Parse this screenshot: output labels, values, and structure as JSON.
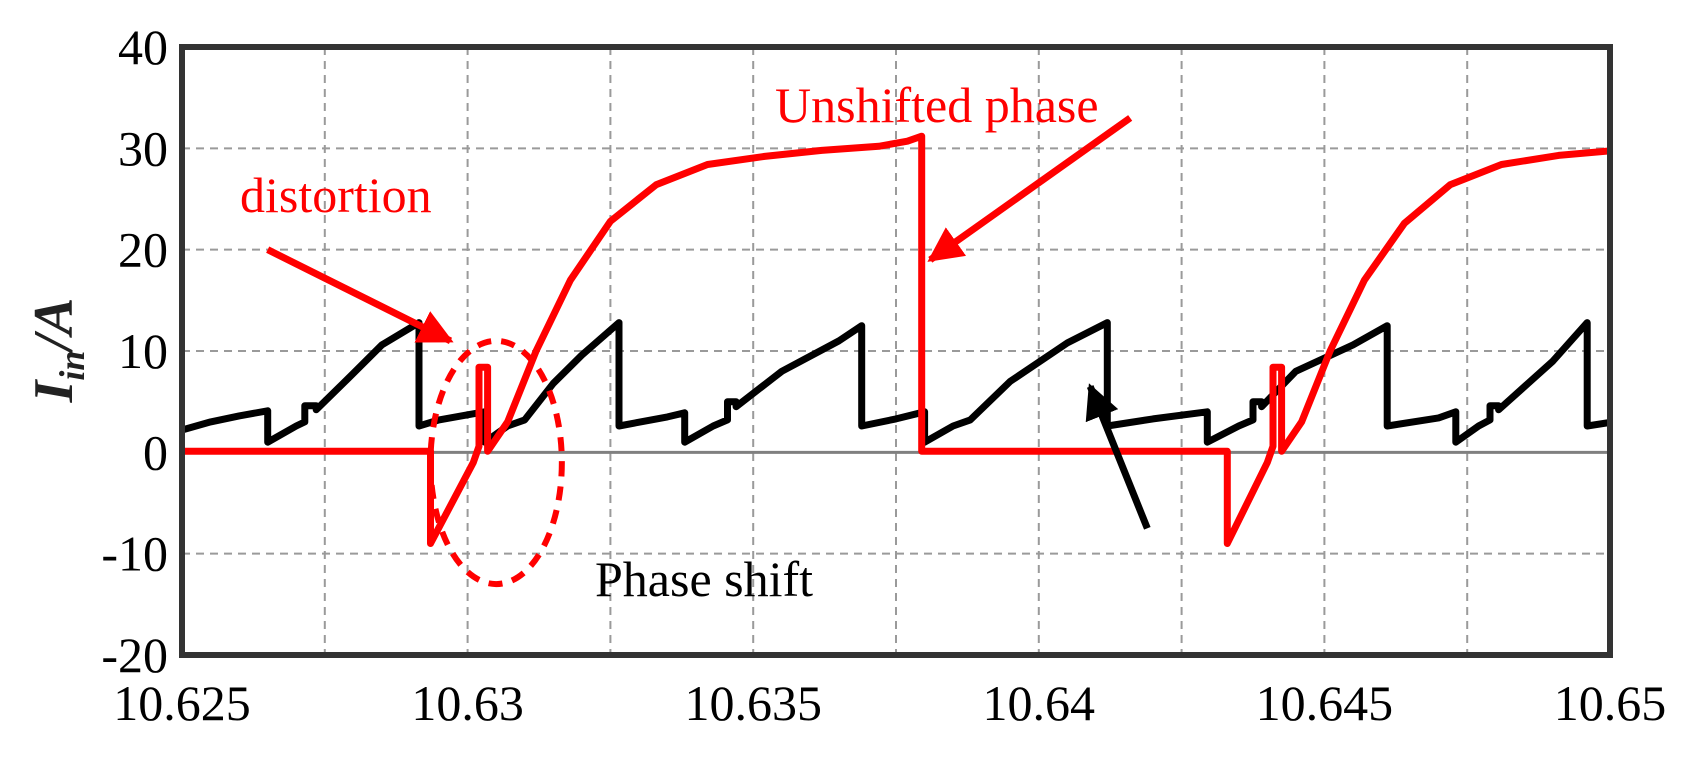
{
  "chart_data": {
    "type": "line",
    "title": "",
    "xlabel": "",
    "ylabel": "I_in/A",
    "ylabel_parts": {
      "symbol": "I",
      "subscript": "in",
      "unit": "/A"
    },
    "xlim": [
      10.625,
      10.65
    ],
    "ylim": [
      -20,
      40
    ],
    "x_ticks": [
      10.625,
      10.63,
      10.635,
      10.64,
      10.645,
      10.65
    ],
    "x_tick_labels": [
      "10.625",
      "10.63",
      "10.635",
      "10.64",
      "10.645",
      "10.65"
    ],
    "y_ticks": [
      -20,
      -10,
      0,
      10,
      20,
      30,
      40
    ],
    "y_tick_labels": [
      "-20",
      "-10",
      "0",
      "10",
      "20",
      "30",
      "40"
    ],
    "grid": true,
    "legend": "none",
    "colors": {
      "unshifted": "#ff0000",
      "shifted": "#000000",
      "zero_line": "#808080",
      "grid": "#9a9a9a"
    },
    "series": [
      {
        "color": "#000000",
        "points": [
          [
            10.625,
            2.2
          ],
          [
            10.6255,
            3.0
          ],
          [
            10.626,
            3.6
          ],
          [
            10.6265,
            4.1
          ],
          [
            10.6265,
            1.0
          ],
          [
            10.627,
            2.6
          ],
          [
            10.62715,
            3.0
          ],
          [
            10.62715,
            4.6
          ],
          [
            10.62735,
            4.6
          ],
          [
            10.62735,
            4.2
          ],
          [
            10.628,
            7.8
          ],
          [
            10.6285,
            10.6
          ],
          [
            10.62915,
            12.8
          ],
          [
            10.62915,
            2.6
          ],
          [
            10.6295,
            3.2
          ],
          [
            10.63,
            3.7
          ],
          [
            10.6303,
            4.0
          ],
          [
            10.6303,
            1.0
          ],
          [
            10.6307,
            2.6
          ],
          [
            10.631,
            3.2
          ],
          [
            10.6315,
            6.8
          ],
          [
            10.632,
            9.6
          ],
          [
            10.63265,
            12.8
          ],
          [
            10.63265,
            2.6
          ],
          [
            10.6335,
            3.5
          ],
          [
            10.6338,
            3.9
          ],
          [
            10.6338,
            1.0
          ],
          [
            10.6343,
            2.6
          ],
          [
            10.63455,
            3.2
          ],
          [
            10.63455,
            5.0
          ],
          [
            10.6347,
            5.0
          ],
          [
            10.6347,
            4.5
          ],
          [
            10.6355,
            8.0
          ],
          [
            10.6365,
            11.0
          ],
          [
            10.6369,
            12.5
          ],
          [
            10.6369,
            2.6
          ],
          [
            10.6375,
            3.3
          ],
          [
            10.638,
            4.0
          ],
          [
            10.638,
            1.0
          ],
          [
            10.6385,
            2.6
          ],
          [
            10.6388,
            3.2
          ],
          [
            10.6395,
            7.0
          ],
          [
            10.6405,
            10.8
          ],
          [
            10.6412,
            12.8
          ],
          [
            10.6412,
            2.6
          ],
          [
            10.642,
            3.3
          ],
          [
            10.64295,
            4.0
          ],
          [
            10.64295,
            1.0
          ],
          [
            10.6435,
            2.6
          ],
          [
            10.64375,
            3.2
          ],
          [
            10.64375,
            5.0
          ],
          [
            10.6439,
            5.0
          ],
          [
            10.6439,
            4.5
          ],
          [
            10.6445,
            8.0
          ],
          [
            10.6455,
            10.6
          ],
          [
            10.6461,
            12.5
          ],
          [
            10.6461,
            2.6
          ],
          [
            10.647,
            3.4
          ],
          [
            10.6473,
            4.0
          ],
          [
            10.6473,
            1.0
          ],
          [
            10.6477,
            2.6
          ],
          [
            10.6479,
            3.2
          ],
          [
            10.6479,
            4.6
          ],
          [
            10.64805,
            4.6
          ],
          [
            10.64805,
            4.2
          ],
          [
            10.649,
            9.0
          ],
          [
            10.6496,
            12.8
          ],
          [
            10.6496,
            2.6
          ],
          [
            10.6505,
            3.4
          ],
          [
            10.6513,
            4.0
          ],
          [
            10.6513,
            1.0
          ],
          [
            10.6519,
            3.0
          ],
          [
            10.6525,
            4.3
          ]
        ]
      },
      {
        "color": "#ff0000",
        "points": [
          [
            10.625,
            0.1
          ],
          [
            10.62935,
            0.1
          ],
          [
            10.62935,
            -9.0
          ],
          [
            10.6301,
            -1.0
          ],
          [
            10.6302,
            0.6
          ],
          [
            10.6302,
            8.4
          ],
          [
            10.63035,
            8.4
          ],
          [
            10.63035,
            0.1
          ],
          [
            10.6307,
            3.0
          ],
          [
            10.6312,
            10.0
          ],
          [
            10.6318,
            17.0
          ],
          [
            10.6325,
            22.8
          ],
          [
            10.6333,
            26.4
          ],
          [
            10.6342,
            28.4
          ],
          [
            10.6352,
            29.2
          ],
          [
            10.6362,
            29.8
          ],
          [
            10.6372,
            30.2
          ],
          [
            10.6377,
            30.7
          ],
          [
            10.63795,
            31.2
          ],
          [
            10.63795,
            0.1
          ],
          [
            10.6433,
            0.1
          ],
          [
            10.6433,
            -9.0
          ],
          [
            10.644,
            -1.0
          ],
          [
            10.6441,
            0.6
          ],
          [
            10.6441,
            8.4
          ],
          [
            10.64425,
            8.4
          ],
          [
            10.64425,
            0.1
          ],
          [
            10.6446,
            3.0
          ],
          [
            10.6451,
            10.0
          ],
          [
            10.6457,
            17.0
          ],
          [
            10.6464,
            22.6
          ],
          [
            10.6472,
            26.4
          ],
          [
            10.6481,
            28.4
          ],
          [
            10.6491,
            29.3
          ],
          [
            10.6501,
            29.8
          ],
          [
            10.6511,
            30.2
          ],
          [
            10.6517,
            30.7
          ],
          [
            10.65195,
            31.2
          ],
          [
            10.65195,
            0.1
          ],
          [
            10.652,
            0.1
          ],
          [
            10.652,
            -9.0
          ],
          [
            10.6525,
            0.0
          ]
        ]
      }
    ],
    "annotations": [
      {
        "text": "Unshifted phase",
        "color": "#ff0000",
        "arrow_from": [
          10.6416,
          33.0
        ],
        "arrow_to": [
          10.6381,
          19.0
        ]
      },
      {
        "text": "distortion",
        "color": "#ff0000",
        "arrow_from": [
          10.6265,
          20.0
        ],
        "arrow_to": [
          10.6297,
          11.0
        ]
      },
      {
        "text": "Phase shift",
        "color": "#000000",
        "arrow_from": [
          10.6419,
          -7.5
        ],
        "arrow_to": [
          10.6409,
          6.5
        ]
      }
    ],
    "highlight_ellipse": {
      "center": [
        10.6305,
        -1.0
      ],
      "rx_data": 0.00115,
      "ry_data": 12.0,
      "color": "#ff0000",
      "style": "dashed"
    }
  }
}
